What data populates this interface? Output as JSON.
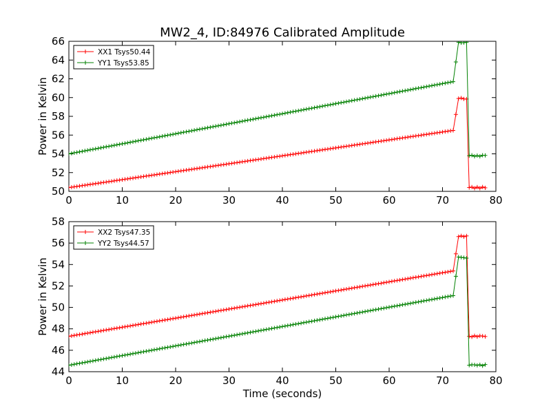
{
  "figure": {
    "title": "MW2_4, ID:84976 Calibrated Amplitude"
  },
  "chart_data": [
    {
      "type": "line",
      "title": "MW2_4, ID:84976 Calibrated Amplitude",
      "xlabel": "",
      "ylabel": "Power in Kelvin",
      "xlim": [
        0,
        80
      ],
      "ylim": [
        50,
        66
      ],
      "xticks": [
        "0",
        "10",
        "20",
        "30",
        "40",
        "50",
        "60",
        "70",
        "80"
      ],
      "yticks": [
        "50",
        "52",
        "54",
        "56",
        "58",
        "60",
        "62",
        "64",
        "66"
      ],
      "grid": false,
      "legend_position": "top-left",
      "marker": "+",
      "x": [
        0,
        72,
        73,
        74.5,
        75,
        78
      ],
      "series": [
        {
          "name": "XX1 Tsys50.44",
          "color": "#ff0000",
          "values": [
            50.4,
            56.5,
            59.9,
            59.9,
            50.4,
            50.4
          ]
        },
        {
          "name": "YY1 Tsys53.85",
          "color": "#008000",
          "values": [
            54.0,
            61.7,
            65.9,
            65.9,
            53.8,
            53.8
          ]
        }
      ]
    },
    {
      "type": "line",
      "title": "",
      "xlabel": "Time (seconds)",
      "ylabel": "Power in Kelvin",
      "xlim": [
        0,
        80
      ],
      "ylim": [
        44,
        58
      ],
      "xticks": [
        "0",
        "10",
        "20",
        "30",
        "40",
        "50",
        "60",
        "70",
        "80"
      ],
      "yticks": [
        "44",
        "46",
        "48",
        "50",
        "52",
        "54",
        "56",
        "58"
      ],
      "grid": false,
      "legend_position": "top-left",
      "marker": "+",
      "x": [
        0,
        72,
        73,
        74.5,
        75,
        78
      ],
      "series": [
        {
          "name": "XX2 Tsys47.35",
          "color": "#ff0000",
          "values": [
            47.3,
            53.4,
            56.6,
            56.6,
            47.3,
            47.3
          ]
        },
        {
          "name": "YY2 Tsys44.57",
          "color": "#008000",
          "values": [
            44.6,
            51.1,
            54.7,
            54.6,
            44.6,
            44.6
          ]
        }
      ]
    }
  ]
}
